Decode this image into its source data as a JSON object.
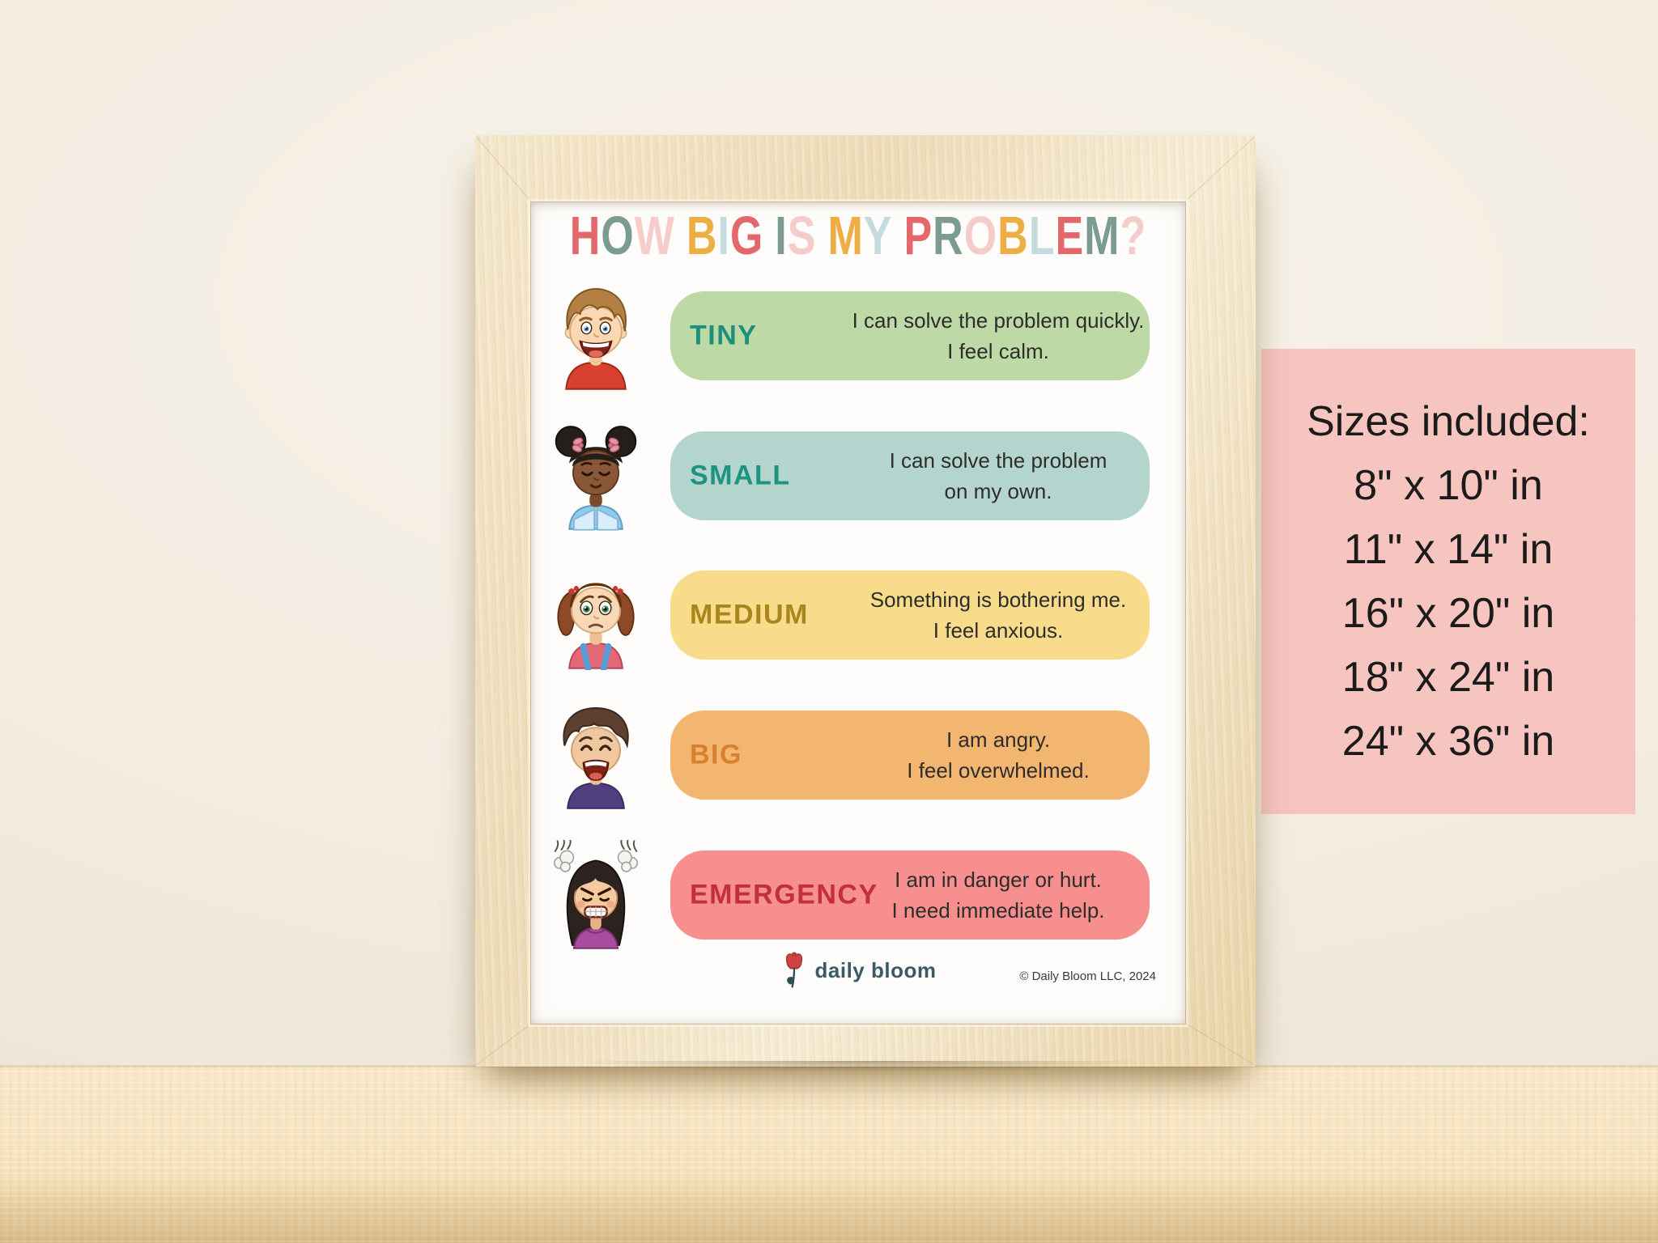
{
  "poster": {
    "title": {
      "text": "HOW BIG IS MY PROBLEM?",
      "letter_colors": [
        "#e2686c",
        "#7b9c8e",
        "#f4ccca",
        "#ecae45",
        "#c5dcdf"
      ]
    },
    "rows": [
      {
        "label": "TINY",
        "label_color": "#1d8f7a",
        "pill_color": "#bdd9a5",
        "avatar": "smiling-boy",
        "lines": [
          "I can solve the problem quickly.",
          "I feel calm."
        ]
      },
      {
        "label": "SMALL",
        "label_color": "#1d9480",
        "pill_color": "#b3d5ce",
        "avatar": "calm-girl-afro-puffs",
        "lines": [
          "I can solve the problem",
          "on my own."
        ]
      },
      {
        "label": "MEDIUM",
        "label_color": "#a9861c",
        "pill_color": "#f8dc8c",
        "avatar": "worried-girl-pigtails",
        "lines": [
          "Something is bothering me.",
          "I feel anxious."
        ]
      },
      {
        "label": "BIG",
        "label_color": "#d6812e",
        "pill_color": "#f3b671",
        "avatar": "crying-boy",
        "lines": [
          "I am angry.",
          "I feel overwhelmed."
        ]
      },
      {
        "label": "EMERGENCY",
        "label_color": "#c42f3e",
        "pill_color": "#f68f8e",
        "avatar": "angry-girl-steam",
        "lines": [
          "I am in danger or hurt.",
          "I need immediate help."
        ]
      }
    ],
    "footer": {
      "brand": "daily bloom",
      "copyright": "© Daily Bloom LLC, 2024"
    }
  },
  "sizes_panel": {
    "bg_color": "#f6c5c0",
    "heading": "Sizes included:",
    "sizes": [
      "8\" x 10\" in",
      "11\" x 14\" in",
      "16\" x 20\" in",
      "18\" x 24\" in",
      "24\" x 36\" in"
    ]
  }
}
